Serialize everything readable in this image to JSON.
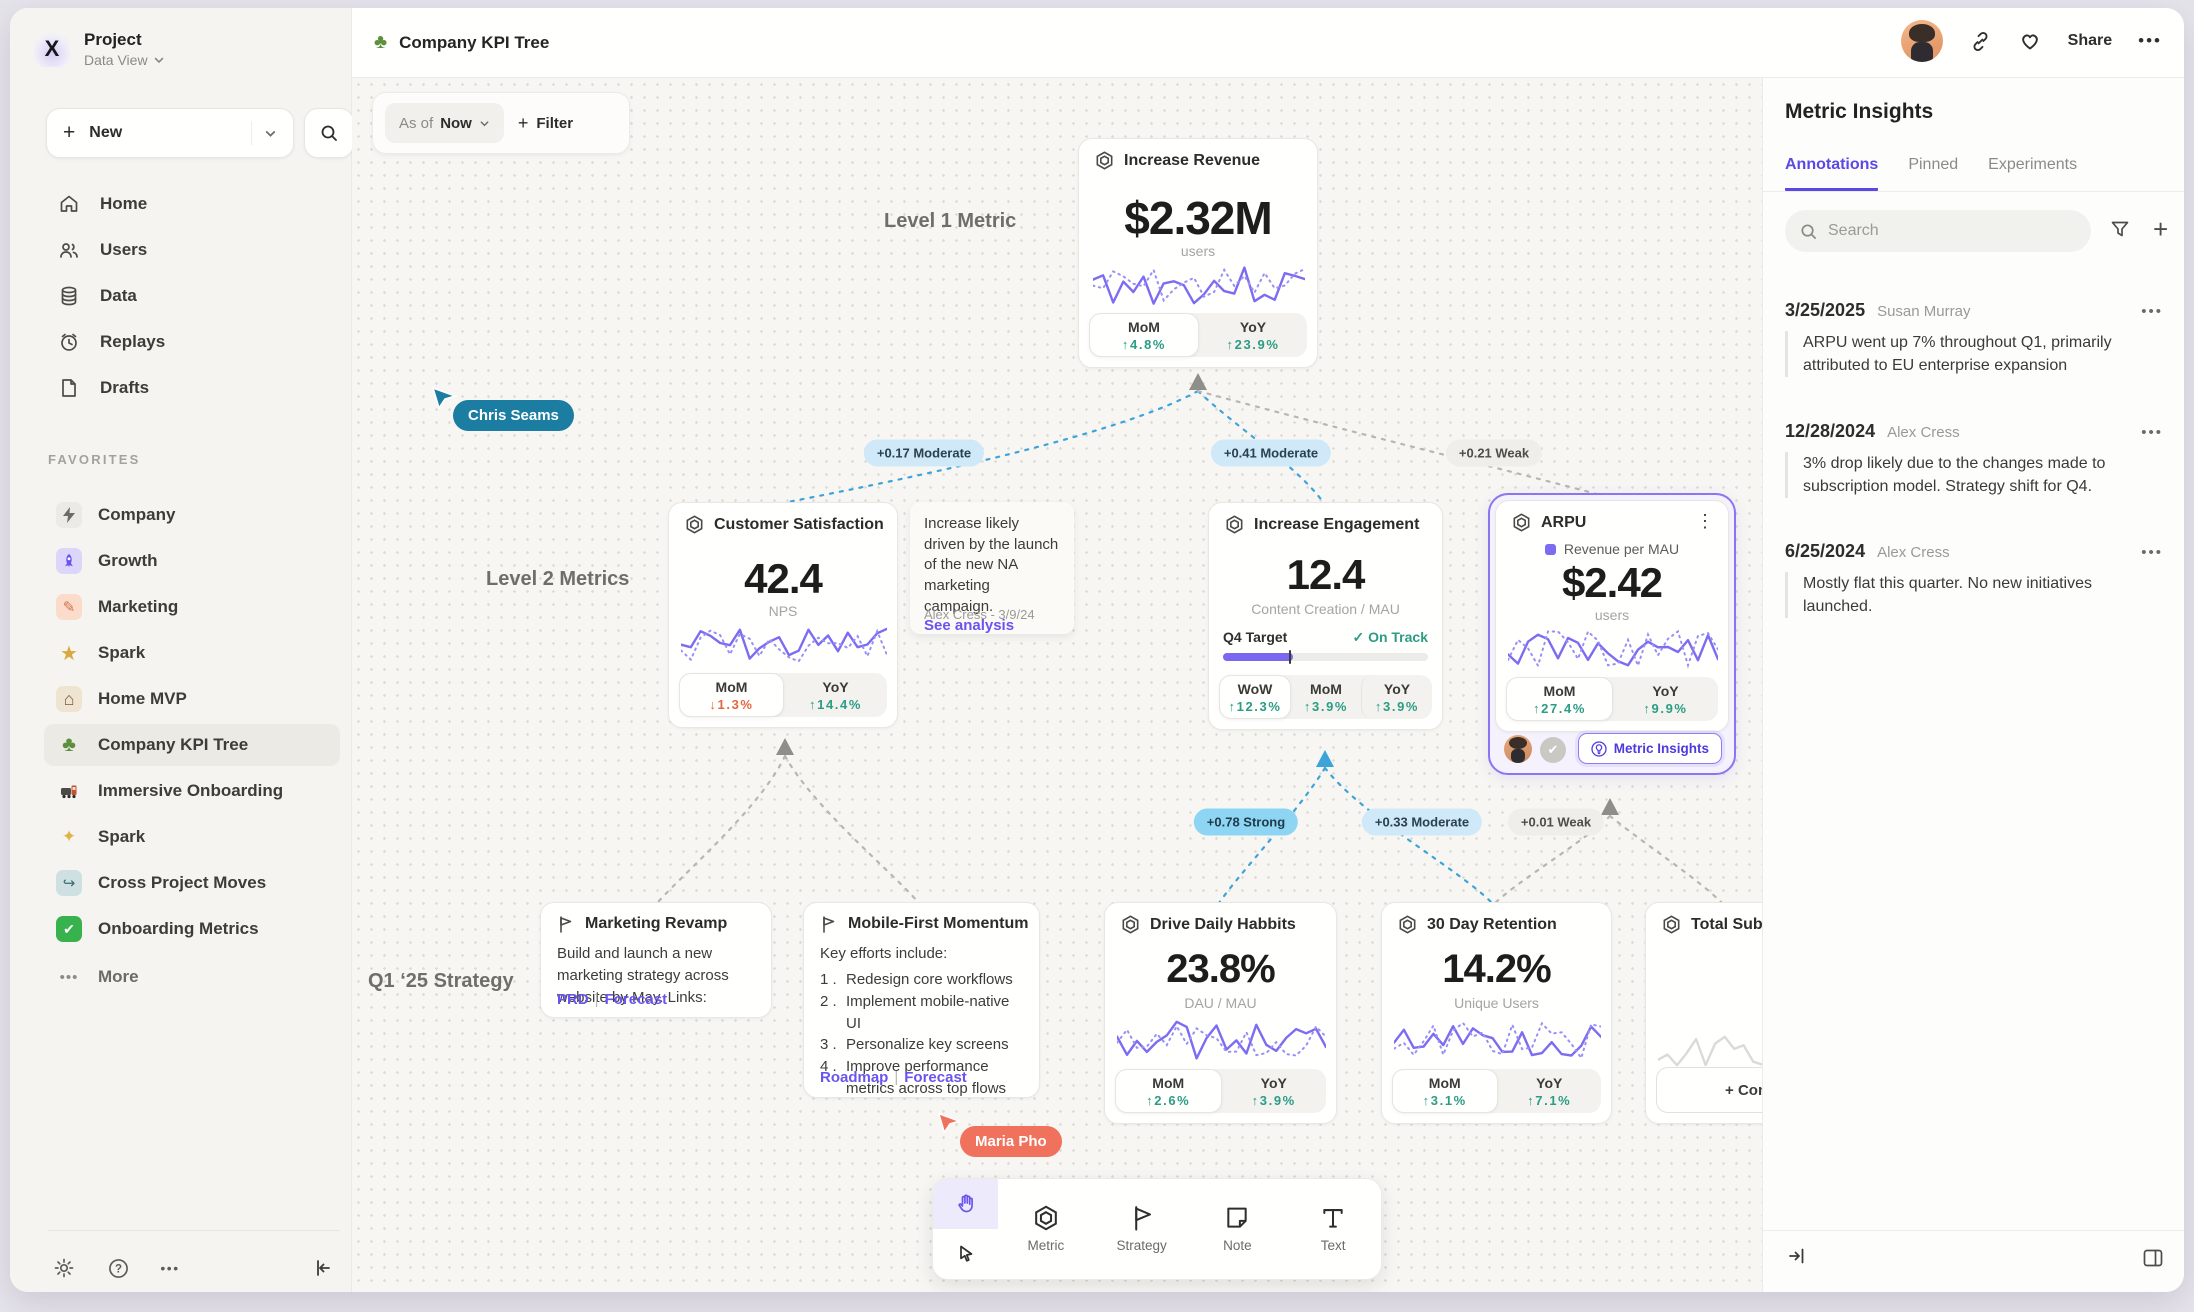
{
  "header": {
    "title": "Company KPI Tree",
    "share_label": "Share"
  },
  "sidebar": {
    "project_name": "Project",
    "project_view": "Data View",
    "new_label": "New",
    "nav": [
      {
        "label": "Home"
      },
      {
        "label": "Users"
      },
      {
        "label": "Data"
      },
      {
        "label": "Replays"
      },
      {
        "label": "Drafts"
      }
    ],
    "favorites_title": "FAVORITES",
    "favorites": [
      {
        "label": "Company"
      },
      {
        "label": "Growth"
      },
      {
        "label": "Marketing"
      },
      {
        "label": "Spark"
      },
      {
        "label": "Home MVP"
      },
      {
        "label": "Company KPI Tree"
      },
      {
        "label": "Immersive Onboarding"
      },
      {
        "label": "Spark"
      },
      {
        "label": "Cross Project Moves"
      },
      {
        "label": "Onboarding Metrics"
      }
    ],
    "more_label": "More"
  },
  "canvas": {
    "asof_label": "As of",
    "asof_value": "Now",
    "filter_label": "Filter",
    "level1_label": "Level 1 Metric",
    "level2_label": "Level 2 Metrics",
    "strategy_label": "Q1 ‘25 Strategy",
    "cursors": {
      "chris": "Chris Seams",
      "maria": "Maria Pho"
    },
    "edges": {
      "e1": "+0.17 Moderate",
      "e2": "+0.41 Moderate",
      "e3": "+0.21 Weak",
      "e4": "+0.78 Strong",
      "e5": "+0.33 Moderate",
      "e6": "+0.01 Weak"
    },
    "revenue": {
      "title": "Increase Revenue",
      "value": "$2.32M",
      "unit": "users",
      "mom_label": "MoM",
      "mom": "↑4.8%",
      "yoy_label": "YoY",
      "yoy": "↑23.9%"
    },
    "csat": {
      "title": "Customer Satisfaction",
      "value": "42.4",
      "unit": "NPS",
      "mom_label": "MoM",
      "mom": "↓1.3%",
      "yoy_label": "YoY",
      "yoy": "↑14.4%"
    },
    "note": {
      "text": "Increase likely driven by the launch of the new NA marketing campaign.",
      "link": "See analysis",
      "author": "Alex Cress - 3/9/24"
    },
    "engagement": {
      "title": "Increase Engagement",
      "value": "12.4",
      "unit": "Content Creation / MAU",
      "target_label": "Q4 Target",
      "status": "✓ On Track",
      "wow_label": "WoW",
      "wow": "↑12.3%",
      "mom_label": "MoM",
      "mom": "↑3.9%",
      "yoy_label": "YoY",
      "yoy": "↑3.9%"
    },
    "arpu": {
      "title": "ARPU",
      "legend": "Revenue per MAU",
      "value": "$2.42",
      "unit": "users",
      "mom_label": "MoM",
      "mom": "↑27.4%",
      "yoy_label": "YoY",
      "yoy": "↑9.9%",
      "insights_label": "Metric Insights"
    },
    "marketing": {
      "title": "Marketing Revamp",
      "body": "Build and launch a new marketing strategy across website by May. Links:",
      "link1": "PRD",
      "sep": "|",
      "link2": "Forecast"
    },
    "mobile": {
      "title": "Mobile-First Momentum",
      "intro": "Key efforts include:",
      "items": [
        {
          "n": "1 .",
          "t": "Redesign core workflows"
        },
        {
          "n": "2 .",
          "t": "Implement mobile-native UI"
        },
        {
          "n": "3 .",
          "t": "Personalize key screens"
        },
        {
          "n": "4 .",
          "t": "Improve performance metrics across top flows"
        }
      ],
      "link1": "Roadmap",
      "sep": "|",
      "link2": "Forecast"
    },
    "habits": {
      "title": "Drive Daily Habbits",
      "value": "23.8%",
      "unit": "DAU / MAU",
      "mom_label": "MoM",
      "mom": "↑2.6%",
      "yoy_label": "YoY",
      "yoy": "↑3.9%"
    },
    "retention": {
      "title": "30 Day Retention",
      "value": "14.2%",
      "unit": "Unique Users",
      "mom_label": "MoM",
      "mom": "↑3.1%",
      "yoy_label": "YoY",
      "yoy": "↑7.1%"
    },
    "subs": {
      "title": "Total Subscript",
      "connect_label": "+ Connect"
    },
    "toolbar": {
      "metric": "Metric",
      "strategy": "Strategy",
      "note": "Note",
      "text": "Text"
    }
  },
  "panel": {
    "title": "Metric Insights",
    "tabs": [
      "Annotations",
      "Pinned",
      "Experiments"
    ],
    "search_placeholder": "Search",
    "annotations": [
      {
        "date": "3/25/2025",
        "author": "Susan Murray",
        "text": "ARPU went up 7% throughout Q1, primarily attributed to EU enterprise expansion"
      },
      {
        "date": "12/28/2024",
        "author": "Alex Cress",
        "text": "3% drop likely due to the changes made to subscription model. Strategy shift for Q4."
      },
      {
        "date": "6/25/2024",
        "author": "Alex Cress",
        "text": "Mostly flat this quarter. No new initiatives launched."
      }
    ]
  },
  "colors": {
    "accent_purple": "#6a54ee",
    "up_green": "#2b9c85",
    "down_orange": "#e2663f",
    "edge_blue": "#3da4da",
    "cursor_teal": "#1b7da1",
    "cursor_coral": "#f0715c"
  }
}
